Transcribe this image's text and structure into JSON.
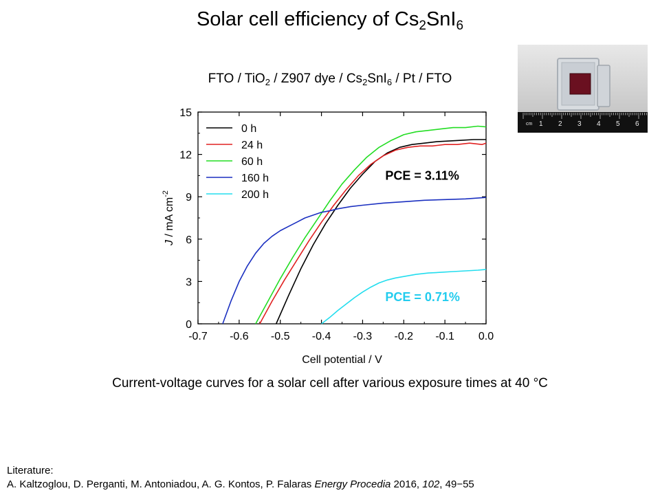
{
  "slide": {
    "title_main": "Solar cell efficiency of Cs",
    "title_sub1": "2",
    "title_mid": "SnI",
    "title_sub2": "6",
    "subtitle": {
      "p1": "FTO / TiO",
      "s1": "2",
      "p2": " / Z907 dye / Cs",
      "s2": "2",
      "p3": "SnI",
      "s3": "6",
      "p4": " / Pt / FTO"
    },
    "caption": "Current-voltage curves for a solar cell after various exposure times at 40 °C",
    "literature_heading": "Literature:",
    "reference": {
      "authors": "A. Kaltzoglou, D. Perganti, M. Antoniadou, A. G. Kontos, P. Falaras ",
      "journal": "Energy Procedia",
      "year": " 2016, ",
      "volume": "102",
      "pages": ", 49−55"
    },
    "photo": {
      "ruler_numbers": [
        "1",
        "2",
        "3",
        "4",
        "5",
        "6"
      ],
      "ruler_unit": "cm"
    }
  },
  "chart_data": {
    "type": "line",
    "xlabel": "Cell potential / V",
    "ylabel_italic": "J",
    "ylabel_rest": " / mA cm",
    "ylabel_sup": "-2",
    "xlim": [
      -0.7,
      0.0
    ],
    "ylim": [
      0,
      15
    ],
    "xticks": [
      "-0.7",
      "-0.6",
      "-0.5",
      "-0.4",
      "-0.3",
      "-0.2",
      "-0.1",
      "0.0"
    ],
    "yticks": [
      "0",
      "3",
      "6",
      "9",
      "12",
      "15"
    ],
    "legend_position": "top-left",
    "grid": false,
    "annotations": [
      {
        "text": "PCE = 3.11%",
        "color": "#000000",
        "x": -0.245,
        "y": 10.2
      },
      {
        "text": "PCE = 0.71%",
        "color": "#22ccee",
        "x": -0.245,
        "y": 1.6
      }
    ],
    "series": [
      {
        "name": "0 h",
        "color": "#000000",
        "x": [
          -0.51,
          -0.48,
          -0.45,
          -0.42,
          -0.39,
          -0.36,
          -0.33,
          -0.3,
          -0.27,
          -0.24,
          -0.21,
          -0.18,
          -0.15,
          -0.12,
          -0.09,
          -0.06,
          -0.03,
          0.0
        ],
        "y": [
          0,
          2.0,
          3.9,
          5.6,
          7.1,
          8.4,
          9.6,
          10.6,
          11.5,
          12.1,
          12.5,
          12.7,
          12.8,
          12.9,
          12.95,
          13.0,
          13.05,
          13.05
        ]
      },
      {
        "name": "24 h",
        "color": "#e02020",
        "x": [
          -0.55,
          -0.52,
          -0.49,
          -0.46,
          -0.43,
          -0.4,
          -0.37,
          -0.34,
          -0.31,
          -0.28,
          -0.25,
          -0.22,
          -0.19,
          -0.16,
          -0.13,
          -0.1,
          -0.07,
          -0.04,
          -0.01,
          0.0
        ],
        "y": [
          0,
          1.6,
          3.1,
          4.5,
          5.9,
          7.2,
          8.4,
          9.5,
          10.5,
          11.3,
          11.9,
          12.3,
          12.5,
          12.6,
          12.6,
          12.7,
          12.7,
          12.8,
          12.7,
          12.8
        ]
      },
      {
        "name": "60 h",
        "color": "#22dd22",
        "x": [
          -0.56,
          -0.53,
          -0.5,
          -0.47,
          -0.44,
          -0.41,
          -0.38,
          -0.35,
          -0.32,
          -0.29,
          -0.26,
          -0.23,
          -0.2,
          -0.17,
          -0.14,
          -0.11,
          -0.08,
          -0.05,
          -0.02,
          0.0
        ],
        "y": [
          0,
          1.6,
          3.2,
          4.7,
          6.1,
          7.4,
          8.7,
          9.9,
          10.9,
          11.8,
          12.5,
          13.0,
          13.4,
          13.6,
          13.7,
          13.8,
          13.9,
          13.9,
          14.0,
          13.95
        ]
      },
      {
        "name": "160 h",
        "color": "#1a2fc0",
        "x": [
          -0.64,
          -0.62,
          -0.6,
          -0.58,
          -0.56,
          -0.54,
          -0.52,
          -0.5,
          -0.48,
          -0.46,
          -0.44,
          -0.42,
          -0.4,
          -0.38,
          -0.36,
          -0.33,
          -0.3,
          -0.25,
          -0.2,
          -0.15,
          -0.1,
          -0.05,
          0.0
        ],
        "y": [
          0,
          1.6,
          3.0,
          4.1,
          5.0,
          5.7,
          6.2,
          6.6,
          6.9,
          7.2,
          7.5,
          7.7,
          7.9,
          8.0,
          8.15,
          8.3,
          8.4,
          8.55,
          8.65,
          8.75,
          8.8,
          8.85,
          8.95
        ]
      },
      {
        "name": "200 h",
        "color": "#22ddee",
        "x": [
          -0.4,
          -0.38,
          -0.36,
          -0.34,
          -0.32,
          -0.3,
          -0.28,
          -0.26,
          -0.24,
          -0.22,
          -0.2,
          -0.17,
          -0.14,
          -0.11,
          -0.08,
          -0.05,
          -0.02,
          0.0
        ],
        "y": [
          0,
          0.45,
          0.95,
          1.4,
          1.85,
          2.25,
          2.6,
          2.9,
          3.1,
          3.25,
          3.35,
          3.5,
          3.6,
          3.65,
          3.7,
          3.75,
          3.8,
          3.85
        ]
      }
    ]
  }
}
